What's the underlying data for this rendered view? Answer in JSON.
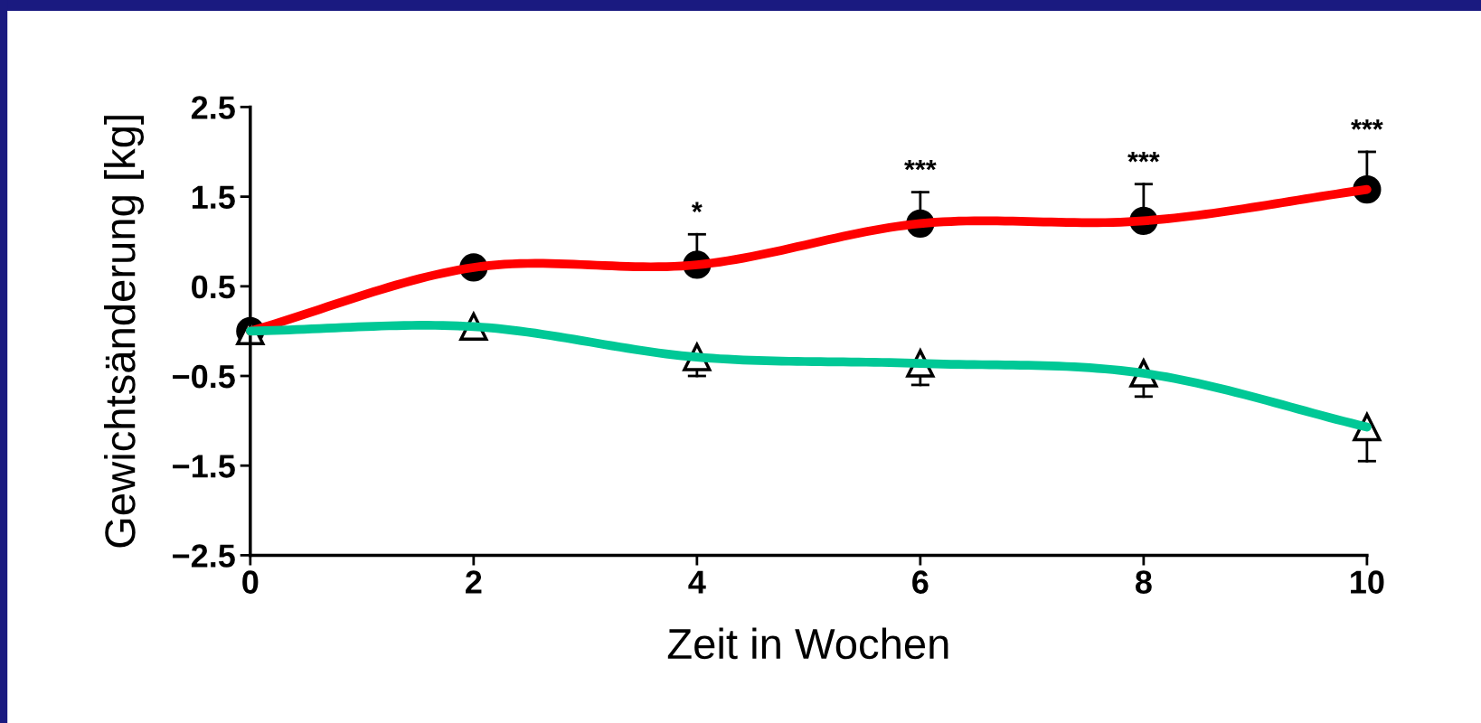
{
  "chart_data": {
    "type": "line",
    "xlabel": "Zeit in Wochen",
    "ylabel": "Gewichtsänderung [kg]",
    "x": [
      0,
      2,
      4,
      6,
      8,
      10
    ],
    "series": [
      {
        "color": "#ff0000",
        "values": [
          0,
          0.71,
          0.74,
          1.2,
          1.23,
          1.58
        ]
      },
      {
        "color": "#00c896",
        "values": [
          0,
          0.05,
          -0.29,
          -0.36,
          -0.47,
          -1.07
        ]
      },
      {
        "type": "scatter",
        "marker": "circle",
        "color": "#000000",
        "values": [
          0,
          0.71,
          0.74,
          1.2,
          1.23,
          1.58
        ],
        "errors": [
          null,
          null,
          [
            0.74,
            1.08
          ],
          [
            1.2,
            1.55
          ],
          [
            1.23,
            1.64
          ],
          [
            1.58,
            2.0
          ]
        ]
      },
      {
        "type": "scatter",
        "marker": "triangle",
        "color": "#ffffff",
        "values": [
          0,
          0.05,
          -0.29,
          -0.36,
          -0.47,
          -1.07
        ],
        "errors": [
          null,
          null,
          [
            -0.5,
            -0.29
          ],
          [
            -0.6,
            -0.36
          ],
          [
            -0.73,
            -0.47
          ],
          [
            -1.45,
            -1.07
          ]
        ]
      }
    ],
    "annotations": [
      {
        "text": "*",
        "x": 4,
        "y": 1.08
      },
      {
        "text": "***",
        "x": 6,
        "y": 1.55
      },
      {
        "text": "***",
        "x": 8,
        "y": 1.64
      },
      {
        "text": "***",
        "x": 10,
        "y": 2.0
      }
    ],
    "xlim": [
      0,
      10
    ],
    "xticks": [
      0,
      2,
      4,
      6,
      8,
      10
    ],
    "ylim": [
      -2.5,
      2.5
    ],
    "yticks": [
      {
        "value": 2.5,
        "label": "2.5"
      },
      {
        "value": 1.5,
        "label": "1.5"
      },
      {
        "value": 0.5,
        "label": "0.5"
      },
      {
        "value": -0.5,
        "label": "−0.5"
      },
      {
        "value": -1.5,
        "label": "−1.5"
      },
      {
        "value": -2.5,
        "label": "−2.5"
      }
    ],
    "grid": false
  }
}
